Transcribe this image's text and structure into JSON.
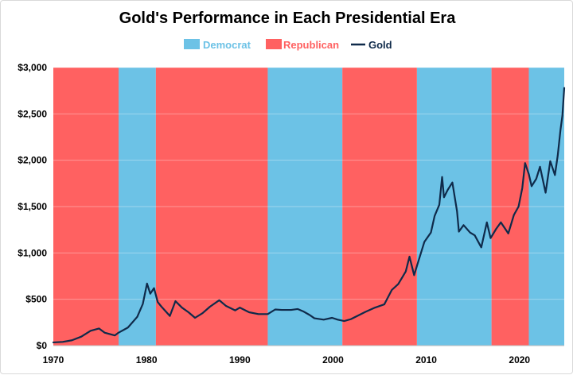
{
  "chart_data": {
    "type": "line",
    "title": "Gold's Performance in Each Presidential Era",
    "legend": {
      "placement": "top",
      "items": [
        {
          "label": "Democrat",
          "color": "#6cc2e6"
        },
        {
          "label": "Republican",
          "color": "#ff6161"
        },
        {
          "label": "Gold",
          "color": "#0f2a4a"
        }
      ]
    },
    "xlim": [
      1970,
      2024.8
    ],
    "ylim": [
      0,
      3000
    ],
    "x_ticks": [
      1970,
      1980,
      1990,
      2000,
      2010,
      2020
    ],
    "y_ticks": [
      0,
      500,
      1000,
      1500,
      2000,
      2500,
      3000
    ],
    "y_tick_labels": [
      "$0",
      "$500",
      "$1,000",
      "$1,500",
      "$2,000",
      "$2,500",
      "$3,000"
    ],
    "grid": {
      "horizontal": true,
      "vertical": false
    },
    "eras": [
      {
        "party": "Republican",
        "start": 1970,
        "end": 1977
      },
      {
        "party": "Democrat",
        "start": 1977,
        "end": 1981
      },
      {
        "party": "Republican",
        "start": 1981,
        "end": 1993
      },
      {
        "party": "Democrat",
        "start": 1993,
        "end": 2001
      },
      {
        "party": "Republican",
        "start": 2001,
        "end": 2009
      },
      {
        "party": "Democrat",
        "start": 2009,
        "end": 2017
      },
      {
        "party": "Republican",
        "start": 2017,
        "end": 2021
      },
      {
        "party": "Democrat",
        "start": 2021,
        "end": 2024.8
      }
    ],
    "series": [
      {
        "name": "Gold",
        "color": "#0f2a4a",
        "points": [
          [
            1970,
            35
          ],
          [
            1971,
            40
          ],
          [
            1972,
            58
          ],
          [
            1973,
            97
          ],
          [
            1974,
            160
          ],
          [
            1974.9,
            185
          ],
          [
            1975.5,
            140
          ],
          [
            1976.6,
            110
          ],
          [
            1977,
            140
          ],
          [
            1978,
            195
          ],
          [
            1979,
            310
          ],
          [
            1979.6,
            450
          ],
          [
            1980.05,
            670
          ],
          [
            1980.4,
            560
          ],
          [
            1980.8,
            620
          ],
          [
            1981.2,
            470
          ],
          [
            1981.6,
            420
          ],
          [
            1982.5,
            320
          ],
          [
            1983.1,
            480
          ],
          [
            1983.8,
            410
          ],
          [
            1984.5,
            360
          ],
          [
            1985.2,
            300
          ],
          [
            1986,
            350
          ],
          [
            1986.8,
            420
          ],
          [
            1987.8,
            490
          ],
          [
            1988.5,
            430
          ],
          [
            1989.5,
            380
          ],
          [
            1990,
            410
          ],
          [
            1991,
            360
          ],
          [
            1992,
            340
          ],
          [
            1993,
            340
          ],
          [
            1993.8,
            390
          ],
          [
            1994.5,
            385
          ],
          [
            1995.5,
            385
          ],
          [
            1996.2,
            395
          ],
          [
            1996.8,
            370
          ],
          [
            1997.5,
            330
          ],
          [
            1998,
            295
          ],
          [
            1999,
            280
          ],
          [
            1999.9,
            300
          ],
          [
            2000.5,
            280
          ],
          [
            2001.2,
            265
          ],
          [
            2001.9,
            285
          ],
          [
            2002.5,
            315
          ],
          [
            2003.5,
            365
          ],
          [
            2004.5,
            410
          ],
          [
            2005.5,
            445
          ],
          [
            2006.3,
            600
          ],
          [
            2007,
            665
          ],
          [
            2007.8,
            800
          ],
          [
            2008.2,
            960
          ],
          [
            2008.7,
            760
          ],
          [
            2009,
            860
          ],
          [
            2009.8,
            1120
          ],
          [
            2010.5,
            1220
          ],
          [
            2010.9,
            1400
          ],
          [
            2011.4,
            1520
          ],
          [
            2011.7,
            1820
          ],
          [
            2011.9,
            1600
          ],
          [
            2012.3,
            1680
          ],
          [
            2012.8,
            1760
          ],
          [
            2013.3,
            1450
          ],
          [
            2013.5,
            1230
          ],
          [
            2014,
            1300
          ],
          [
            2014.7,
            1220
          ],
          [
            2015.2,
            1190
          ],
          [
            2015.9,
            1060
          ],
          [
            2016.5,
            1330
          ],
          [
            2016.9,
            1160
          ],
          [
            2017.5,
            1260
          ],
          [
            2018,
            1330
          ],
          [
            2018.8,
            1210
          ],
          [
            2019.4,
            1410
          ],
          [
            2019.9,
            1500
          ],
          [
            2020.3,
            1700
          ],
          [
            2020.6,
            1970
          ],
          [
            2021,
            1850
          ],
          [
            2021.3,
            1720
          ],
          [
            2021.8,
            1800
          ],
          [
            2022.2,
            1930
          ],
          [
            2022.8,
            1650
          ],
          [
            2023.3,
            1990
          ],
          [
            2023.8,
            1840
          ],
          [
            2024.1,
            2050
          ],
          [
            2024.4,
            2330
          ],
          [
            2024.6,
            2480
          ],
          [
            2024.8,
            2780
          ]
        ]
      }
    ]
  }
}
